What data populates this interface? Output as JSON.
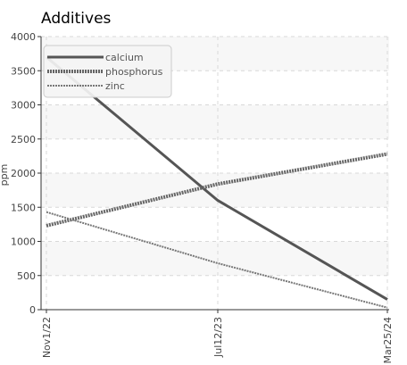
{
  "chart_data": {
    "type": "line",
    "title": "Additives",
    "ylabel": "ppm",
    "xlabel": "",
    "x": [
      "Nov1/22",
      "Jul12/23",
      "Mar25/24"
    ],
    "ylim": [
      0,
      4000
    ],
    "yticks": [
      0,
      500,
      1000,
      1500,
      2000,
      2500,
      3000,
      3500,
      4000
    ],
    "grid": true,
    "legend_position": "top-left",
    "series": [
      {
        "name": "calcium",
        "values": [
          3700,
          1600,
          150
        ],
        "color": "#555555",
        "style": "solid"
      },
      {
        "name": "phosphorus",
        "values": [
          1230,
          1840,
          2280
        ],
        "color": "#666666",
        "style": "dotted-thick"
      },
      {
        "name": "zinc",
        "values": [
          1430,
          680,
          30
        ],
        "color": "#777777",
        "style": "dotted-thin"
      }
    ]
  }
}
